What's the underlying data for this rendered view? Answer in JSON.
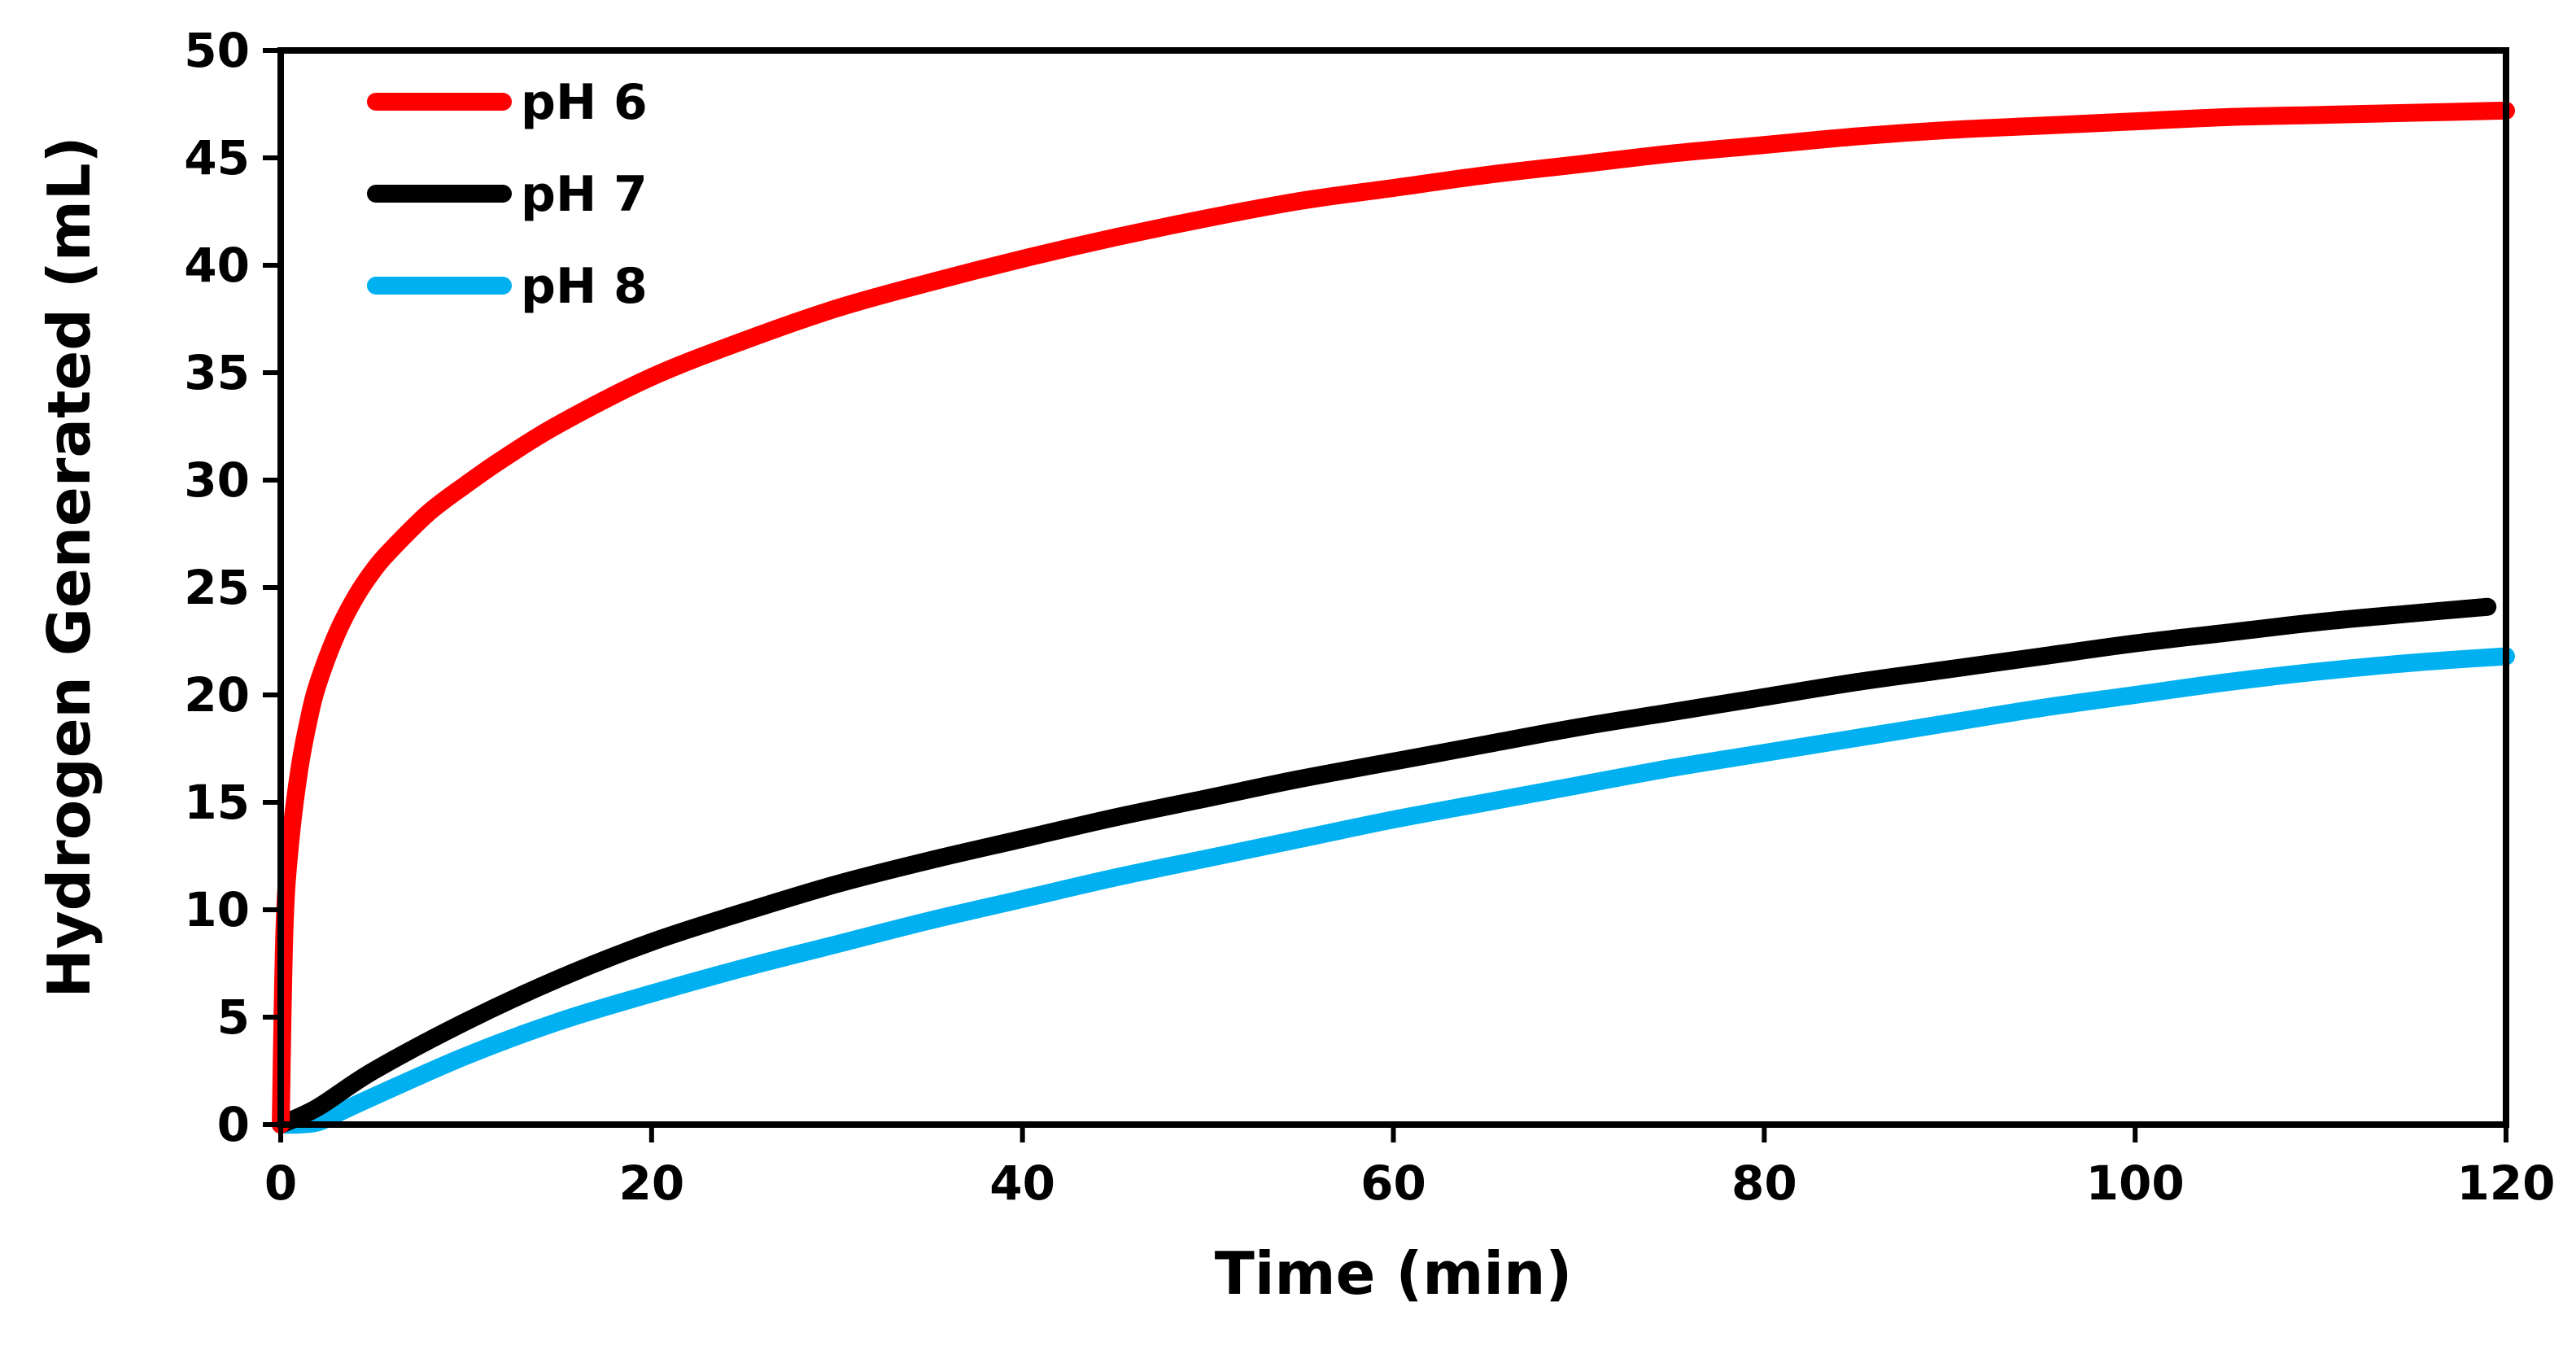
{
  "chart_data": {
    "type": "line",
    "title": "",
    "xlabel": "Time (min)",
    "ylabel": "Hydrogen Generated (mL)",
    "xlim": [
      0,
      120
    ],
    "ylim": [
      0,
      50
    ],
    "xticks": [
      0,
      20,
      40,
      60,
      80,
      100,
      120
    ],
    "yticks": [
      0,
      5,
      10,
      15,
      20,
      25,
      30,
      35,
      40,
      45,
      50
    ],
    "grid": false,
    "legend_position": "top-left",
    "series": [
      {
        "name": "pH 6",
        "color": "#ff0000",
        "x": [
          0,
          0.2,
          0.5,
          1,
          1.5,
          2,
          3,
          4,
          5,
          6,
          8,
          10,
          12,
          15,
          20,
          25,
          30,
          35,
          40,
          45,
          50,
          55,
          60,
          65,
          70,
          75,
          80,
          85,
          90,
          95,
          100,
          105,
          110,
          115,
          120
        ],
        "y": [
          0,
          9,
          13,
          16.5,
          18.8,
          20.5,
          22.8,
          24.5,
          25.8,
          26.8,
          28.5,
          29.8,
          31,
          32.6,
          34.8,
          36.5,
          38,
          39.2,
          40.3,
          41.3,
          42.2,
          43,
          43.6,
          44.2,
          44.7,
          45.2,
          45.6,
          46,
          46.3,
          46.5,
          46.7,
          46.9,
          47,
          47.1,
          47.2
        ]
      },
      {
        "name": "pH 7",
        "color": "#000000",
        "x": [
          0,
          2,
          5,
          10,
          15,
          20,
          25,
          30,
          35,
          40,
          45,
          50,
          55,
          60,
          65,
          70,
          75,
          80,
          85,
          90,
          95,
          100,
          105,
          110,
          115,
          119
        ],
        "y": [
          0,
          0.8,
          2.5,
          4.8,
          6.8,
          8.5,
          9.9,
          11.2,
          12.3,
          13.3,
          14.3,
          15.2,
          16.1,
          16.9,
          17.7,
          18.5,
          19.2,
          19.9,
          20.6,
          21.2,
          21.8,
          22.4,
          22.9,
          23.4,
          23.8,
          24.1
        ]
      },
      {
        "name": "pH 8",
        "color": "#00b0f0",
        "x": [
          0,
          1,
          2,
          3,
          5,
          10,
          15,
          20,
          25,
          30,
          35,
          40,
          45,
          50,
          55,
          60,
          65,
          70,
          75,
          80,
          85,
          90,
          95,
          100,
          105,
          110,
          115,
          120
        ],
        "y": [
          0,
          0,
          0.1,
          0.5,
          1.3,
          3.2,
          4.8,
          6.1,
          7.3,
          8.4,
          9.5,
          10.5,
          11.5,
          12.4,
          13.3,
          14.2,
          15,
          15.8,
          16.6,
          17.3,
          18,
          18.7,
          19.4,
          20,
          20.6,
          21.1,
          21.5,
          21.8
        ]
      }
    ]
  }
}
